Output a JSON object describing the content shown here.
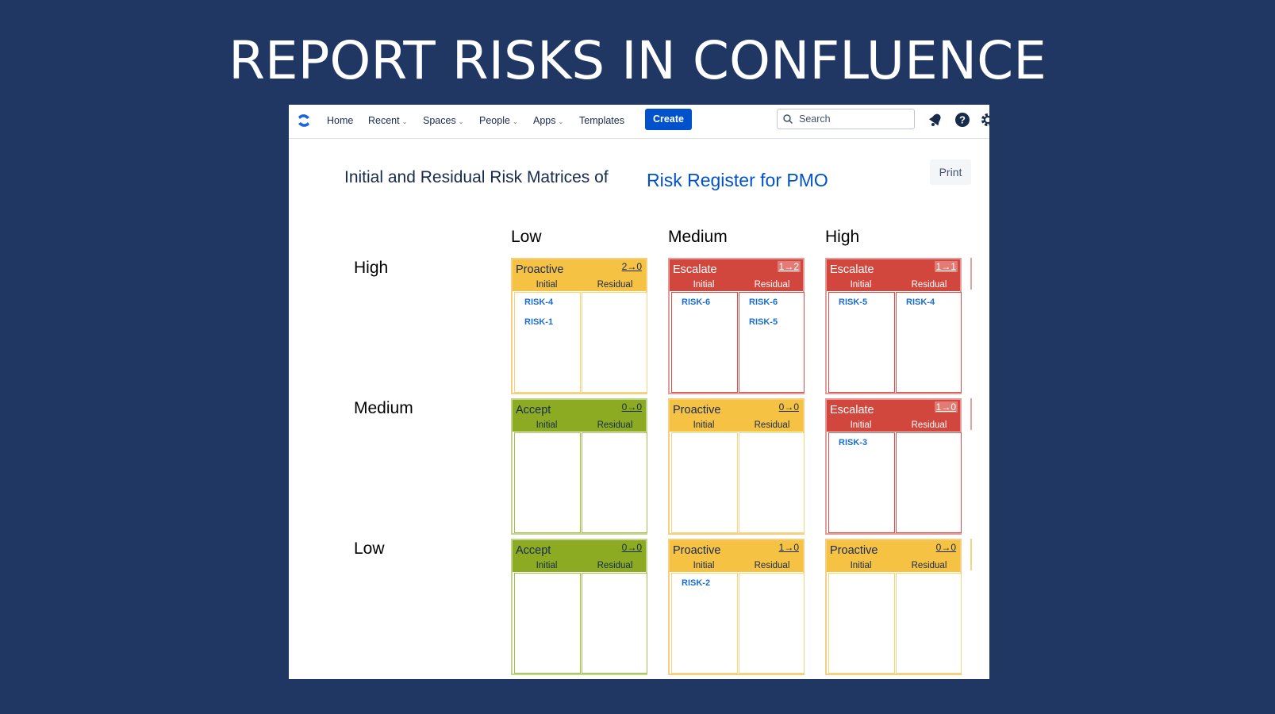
{
  "slide_title": "REPORT RISKS IN CONFLUENCE",
  "nav": {
    "home": "Home",
    "recent": "Recent",
    "spaces": "Spaces",
    "people": "People",
    "apps": "Apps",
    "templates": "Templates",
    "create": "Create",
    "search_placeholder": "Search"
  },
  "page": {
    "heading": "Initial and Residual Risk Matrices of",
    "heading_link": "Risk Register for PMO",
    "print": "Print"
  },
  "matrix": {
    "columns": [
      "Low",
      "Medium",
      "High"
    ],
    "rows": [
      "High",
      "Medium",
      "Low"
    ],
    "sub_initial": "Initial",
    "sub_residual": "Residual",
    "cells": [
      {
        "label": "Proactive",
        "count": "2→0",
        "color": "#f6c243",
        "initial": [
          "RISK-4",
          "RISK-1"
        ],
        "residual": []
      },
      {
        "label": "Escalate",
        "count": "1→2",
        "color": "#d1473d",
        "initial": [
          "RISK-6"
        ],
        "residual": [
          "RISK-6",
          "RISK-5"
        ]
      },
      {
        "label": "Escalate",
        "count": "1→1",
        "color": "#d1473d",
        "initial": [
          "RISK-5"
        ],
        "residual": [
          "RISK-4"
        ]
      },
      {
        "label": "Accept",
        "count": "0→0",
        "color": "#8cab22",
        "initial": [],
        "residual": []
      },
      {
        "label": "Proactive",
        "count": "0→0",
        "color": "#f6c243",
        "initial": [],
        "residual": []
      },
      {
        "label": "Escalate",
        "count": "1→0",
        "color": "#d1473d",
        "initial": [
          "RISK-3"
        ],
        "residual": []
      },
      {
        "label": "Accept",
        "count": "0→0",
        "color": "#8cab22",
        "initial": [],
        "residual": []
      },
      {
        "label": "Proactive",
        "count": "1→0",
        "color": "#f6c243",
        "initial": [
          "RISK-2"
        ],
        "residual": []
      },
      {
        "label": "Proactive",
        "count": "0→0",
        "color": "#f6c243",
        "initial": [],
        "residual": []
      }
    ]
  }
}
